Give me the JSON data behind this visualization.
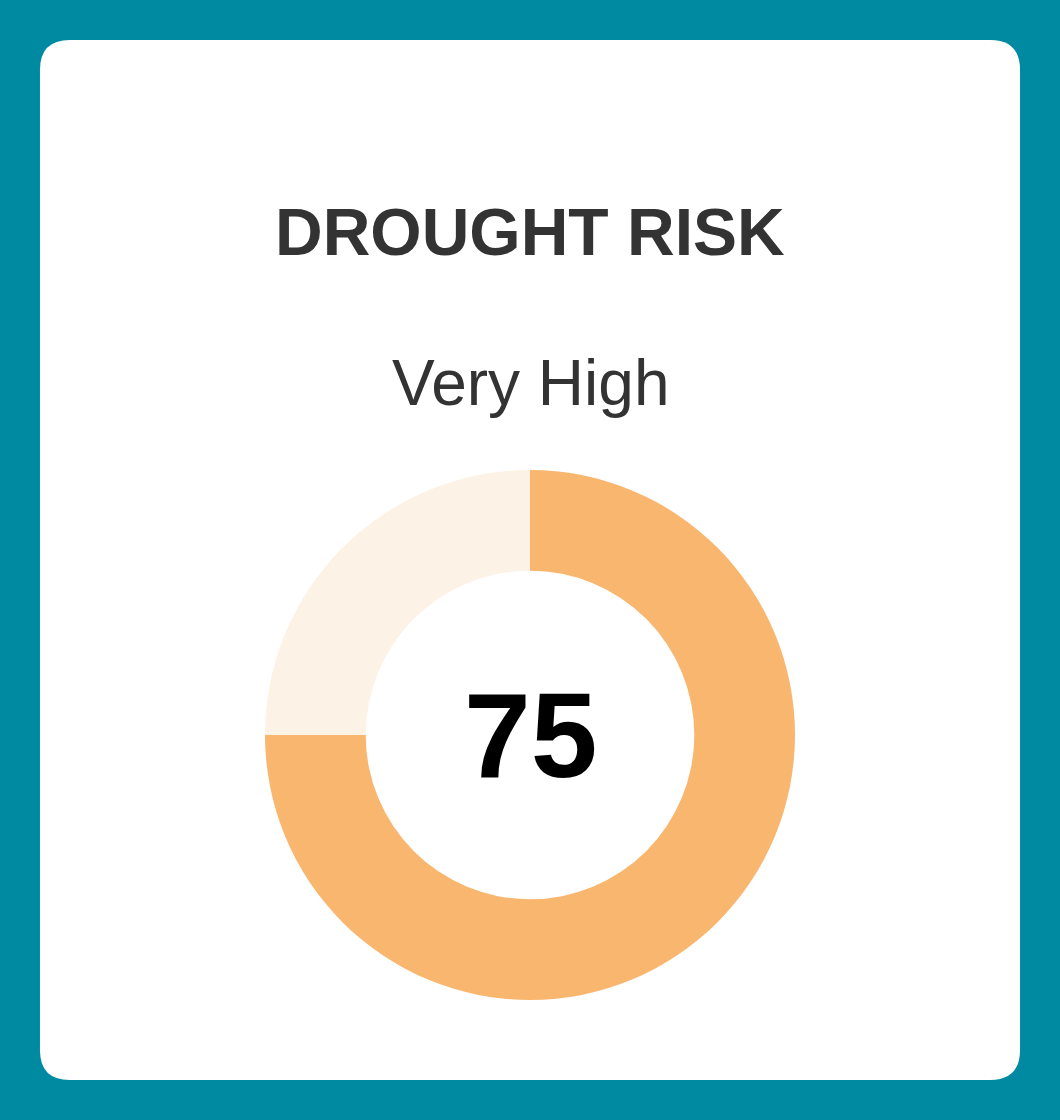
{
  "chart_data": {
    "type": "donut",
    "title": "DROUGHT RISK",
    "subtitle": "Very High",
    "categories": [
      null,
      null
    ],
    "values": [
      75,
      25
    ],
    "colors": [
      "#f9b66f",
      "#fdf2e6"
    ],
    "annotations": [
      "75"
    ],
    "legend": false
  }
}
